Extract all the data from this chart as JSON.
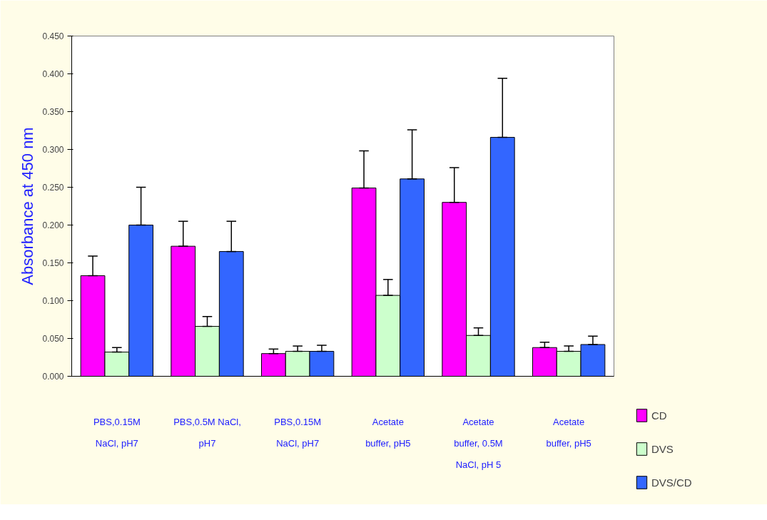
{
  "chart_data": {
    "type": "bar",
    "ylabel": "Absorbance at 450 nm",
    "categories": [
      "PBS,0.15M NaCl, pH7",
      "PBS,0.5M NaCl, pH7",
      "PBS,0.15M NaCl, pH7",
      "Acetate buffer, pH5",
      "Acetate buffer, 0.5M NaCl, pH 5",
      "Acetate buffer, pH5"
    ],
    "series": [
      {
        "name": "CD",
        "color": "#ff00ff",
        "values": [
          0.133,
          0.172,
          0.03,
          0.249,
          0.23,
          0.038
        ],
        "errors": [
          [
            0.133,
            0.159
          ],
          [
            0.172,
            0.205
          ],
          [
            0.03,
            0.036
          ],
          [
            0.249,
            0.298
          ],
          [
            0.23,
            0.276
          ],
          [
            0.038,
            0.045
          ]
        ]
      },
      {
        "name": "DVS",
        "color": "#ccffcc",
        "values": [
          0.032,
          0.066,
          0.033,
          0.107,
          0.054,
          0.033
        ],
        "errors": [
          [
            0.032,
            0.038
          ],
          [
            0.066,
            0.079
          ],
          [
            0.033,
            0.04
          ],
          [
            0.107,
            0.128
          ],
          [
            0.054,
            0.064
          ],
          [
            0.033,
            0.04
          ]
        ]
      },
      {
        "name": "DVS/CD",
        "color": "#3366ff",
        "values": [
          0.2,
          0.165,
          0.033,
          0.261,
          0.316,
          0.042
        ],
        "errors": [
          [
            0.2,
            0.25
          ],
          [
            0.165,
            0.205
          ],
          [
            0.033,
            0.041
          ],
          [
            0.261,
            0.326
          ],
          [
            0.316,
            0.394
          ],
          [
            0.042,
            0.053
          ]
        ]
      }
    ],
    "ylim": [
      0,
      0.45
    ],
    "yticks": [
      {
        "value": 0,
        "label": "0.000"
      },
      {
        "value": 0.05,
        "label": "0.050"
      },
      {
        "value": 0.1,
        "label": "0.100"
      },
      {
        "value": 0.15,
        "label": "0.150"
      },
      {
        "value": 0.2,
        "label": "0.200"
      },
      {
        "value": 0.25,
        "label": "0.250"
      },
      {
        "value": 0.3,
        "label": "0.300"
      },
      {
        "value": 0.35,
        "label": "0.350"
      },
      {
        "value": 0.4,
        "label": "0.400"
      },
      {
        "value": 0.45,
        "label": "0.450"
      }
    ],
    "grid": false,
    "legend": "right"
  }
}
